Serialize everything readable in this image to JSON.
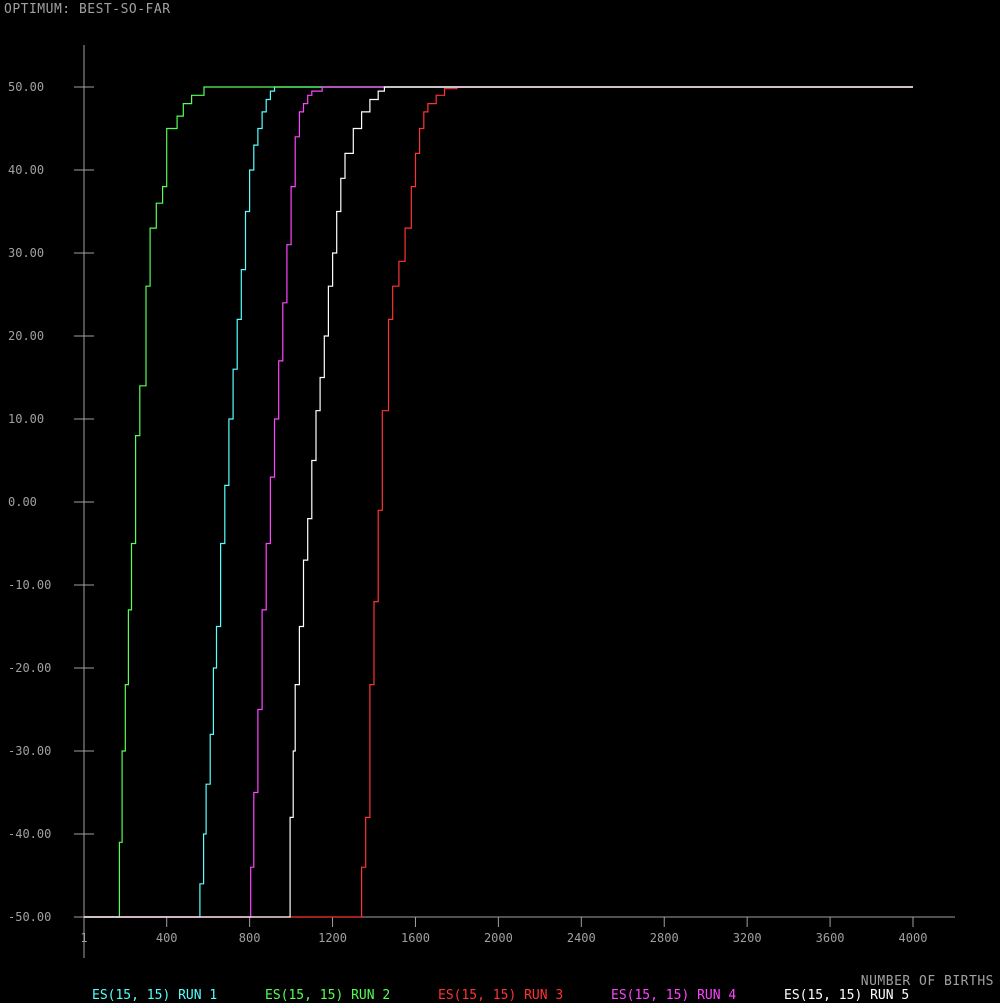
{
  "chart_data": {
    "type": "line",
    "title": "OPTIMUM: BEST-SO-FAR",
    "xlabel": "NUMBER OF BIRTHS",
    "ylabel": "",
    "xlim": [
      1,
      4000
    ],
    "ylim": [
      -50,
      50
    ],
    "xticks": [
      "1",
      "400",
      "800",
      "1200",
      "1600",
      "2000",
      "2400",
      "2800",
      "3200",
      "3600",
      "4000"
    ],
    "xtick_values": [
      1,
      400,
      800,
      1200,
      1600,
      2000,
      2400,
      2800,
      3200,
      3600,
      4000
    ],
    "yticks": [
      "50.00",
      "40.00",
      "30.00",
      "20.00",
      "10.00",
      "0.00",
      "-10.00",
      "-20.00",
      "-30.00",
      "-40.00",
      "-50.00"
    ],
    "ytick_values": [
      50,
      40,
      30,
      20,
      10,
      0,
      -10,
      -20,
      -30,
      -40,
      -50
    ],
    "series": [
      {
        "name": "ES(15, 15) RUN 1",
        "color": "#55ffff",
        "points": [
          [
            1,
            -50
          ],
          [
            555,
            -50
          ],
          [
            560,
            -46
          ],
          [
            578,
            -40
          ],
          [
            590,
            -34
          ],
          [
            610,
            -28
          ],
          [
            625,
            -20
          ],
          [
            640,
            -15
          ],
          [
            660,
            -5
          ],
          [
            680,
            2
          ],
          [
            700,
            10
          ],
          [
            720,
            16
          ],
          [
            740,
            22
          ],
          [
            760,
            28
          ],
          [
            780,
            35
          ],
          [
            800,
            40
          ],
          [
            820,
            43
          ],
          [
            840,
            45
          ],
          [
            860,
            47
          ],
          [
            880,
            48.5
          ],
          [
            900,
            49.5
          ],
          [
            920,
            50
          ],
          [
            4000,
            50
          ]
        ]
      },
      {
        "name": "ES(15, 15) RUN 2",
        "color": "#55ff55",
        "points": [
          [
            1,
            -50
          ],
          [
            170,
            -50
          ],
          [
            172,
            -41
          ],
          [
            185,
            -30
          ],
          [
            200,
            -22
          ],
          [
            215,
            -13
          ],
          [
            230,
            -5
          ],
          [
            250,
            8
          ],
          [
            270,
            14
          ],
          [
            300,
            26
          ],
          [
            320,
            33
          ],
          [
            350,
            36
          ],
          [
            380,
            38
          ],
          [
            400,
            45
          ],
          [
            450,
            46.5
          ],
          [
            480,
            48
          ],
          [
            520,
            49
          ],
          [
            580,
            50
          ],
          [
            4000,
            50
          ]
        ]
      },
      {
        "name": "ES(15, 15) RUN 3",
        "color": "#ff3333",
        "points": [
          [
            1,
            -50
          ],
          [
            1320,
            -50
          ],
          [
            1340,
            -44
          ],
          [
            1360,
            -38
          ],
          [
            1380,
            -22
          ],
          [
            1400,
            -12
          ],
          [
            1420,
            -1
          ],
          [
            1440,
            11
          ],
          [
            1470,
            22
          ],
          [
            1490,
            26
          ],
          [
            1520,
            29
          ],
          [
            1550,
            33
          ],
          [
            1580,
            38
          ],
          [
            1600,
            42
          ],
          [
            1620,
            45
          ],
          [
            1640,
            47
          ],
          [
            1660,
            48
          ],
          [
            1700,
            49
          ],
          [
            1740,
            49.8
          ],
          [
            1800,
            50
          ],
          [
            4000,
            50
          ]
        ]
      },
      {
        "name": "ES(15, 15) RUN 4",
        "color": "#ff44ff",
        "points": [
          [
            1,
            -50
          ],
          [
            800,
            -50
          ],
          [
            805,
            -44
          ],
          [
            820,
            -35
          ],
          [
            840,
            -25
          ],
          [
            860,
            -13
          ],
          [
            880,
            -5
          ],
          [
            900,
            3
          ],
          [
            920,
            10
          ],
          [
            940,
            17
          ],
          [
            960,
            24
          ],
          [
            980,
            31
          ],
          [
            1000,
            38
          ],
          [
            1020,
            44
          ],
          [
            1040,
            47
          ],
          [
            1060,
            48
          ],
          [
            1080,
            49
          ],
          [
            1100,
            49.5
          ],
          [
            1150,
            50
          ],
          [
            4000,
            50
          ]
        ]
      },
      {
        "name": "ES(15, 15) RUN 5",
        "color": "#ffffff",
        "points": [
          [
            1,
            -50
          ],
          [
            990,
            -50
          ],
          [
            995,
            -38
          ],
          [
            1010,
            -30
          ],
          [
            1020,
            -22
          ],
          [
            1040,
            -15
          ],
          [
            1060,
            -7
          ],
          [
            1080,
            -2
          ],
          [
            1100,
            5
          ],
          [
            1120,
            11
          ],
          [
            1140,
            15
          ],
          [
            1160,
            20
          ],
          [
            1180,
            26
          ],
          [
            1200,
            30
          ],
          [
            1220,
            35
          ],
          [
            1240,
            39
          ],
          [
            1260,
            42
          ],
          [
            1300,
            45
          ],
          [
            1340,
            47
          ],
          [
            1380,
            48.5
          ],
          [
            1420,
            49.5
          ],
          [
            1450,
            50
          ],
          [
            4000,
            50
          ]
        ]
      }
    ]
  }
}
